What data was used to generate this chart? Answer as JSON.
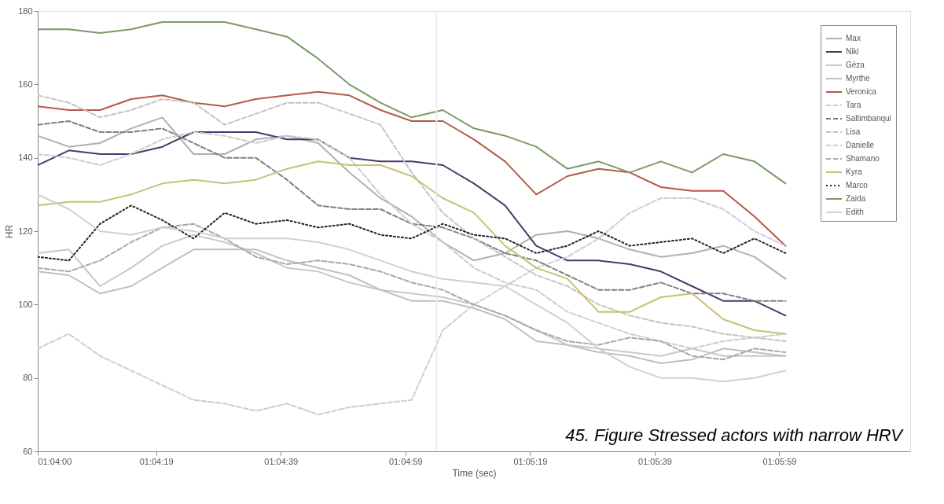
{
  "chart_data": {
    "type": "line",
    "xlabel": "Time (sec)",
    "ylabel": "HR",
    "legend": "top right",
    "grid": false,
    "xlim": [
      1.066667,
      1.105556
    ],
    "ylim": [
      60,
      180
    ],
    "xticks": [
      {
        "value": 1.066667,
        "label": "01:04:00"
      },
      {
        "value": 1.071944,
        "label": "01:04:19"
      },
      {
        "value": 1.0775,
        "label": "01:04:39"
      },
      {
        "value": 1.083056,
        "label": "01:04:59"
      },
      {
        "value": 1.088611,
        "label": "01:05:19"
      },
      {
        "value": 1.094167,
        "label": "01:05:39"
      },
      {
        "value": 1.099722,
        "label": "01:05:59"
      }
    ],
    "yticks": [
      60,
      80,
      100,
      120,
      140,
      160,
      180
    ],
    "x": [
      1.066667,
      1.068056,
      1.069444,
      1.070833,
      1.072222,
      1.073611,
      1.075,
      1.076389,
      1.077778,
      1.079167,
      1.080556,
      1.081944,
      1.083333,
      1.084722,
      1.086111,
      1.0875,
      1.088889,
      1.090278,
      1.091667,
      1.093056,
      1.094444,
      1.095833,
      1.097222,
      1.098611,
      1.1
    ],
    "ref_lines": [
      {
        "axis": "x",
        "value": 1.084444,
        "color": "#ececec"
      }
    ],
    "annotations": [
      "45. Figure Stressed actors with narrow HRV"
    ],
    "series": [
      {
        "name": "Max",
        "color": "#b0b0b0",
        "line_style": "solid",
        "values": [
          146,
          143,
          144,
          148,
          151,
          141,
          141,
          145,
          146,
          144,
          136,
          129,
          124,
          117,
          112,
          114,
          119,
          120,
          118,
          115,
          113,
          114,
          116,
          113,
          107
        ]
      },
      {
        "name": "Niki",
        "color": "#4a3a6a",
        "line_style": "solid",
        "values": [
          138,
          142,
          141,
          141,
          143,
          147,
          147,
          147,
          145,
          145,
          140,
          139,
          139,
          138,
          133,
          127,
          116,
          112,
          112,
          111,
          109,
          105,
          101,
          101,
          97
        ]
      },
      {
        "name": "Géza",
        "color": "#c8c8c8",
        "line_style": "solid",
        "values": [
          114,
          115,
          105,
          110,
          116,
          119,
          117,
          114,
          110,
          109,
          106,
          104,
          103,
          102,
          100,
          97,
          93,
          89,
          88,
          87,
          86,
          88,
          86,
          86,
          86
        ]
      },
      {
        "name": "Myrthe",
        "color": "#c0c0c0",
        "line_style": "solid",
        "values": [
          109,
          108,
          103,
          105,
          110,
          115,
          115,
          115,
          112,
          110,
          108,
          104,
          101,
          101,
          99,
          96,
          90,
          89,
          87,
          86,
          84,
          85,
          88,
          87,
          86
        ]
      },
      {
        "name": "Veronica",
        "color": "#b5594a",
        "line_style": "solid",
        "values": [
          154,
          153,
          153,
          156,
          157,
          155,
          154,
          156,
          157,
          158,
          157,
          153,
          150,
          150,
          145,
          139,
          130,
          135,
          137,
          136,
          132,
          131,
          131,
          124,
          116
        ]
      },
      {
        "name": "Tara",
        "color": "#c8cde0",
        "line_style": "dashed",
        "values": [
          88,
          92,
          86,
          82,
          78,
          74,
          73,
          71,
          73,
          70,
          72,
          73,
          74,
          93,
          100,
          105,
          110,
          113,
          118,
          125,
          129,
          129,
          126,
          120,
          116
        ]
      },
      {
        "name": "Saltimbanqui",
        "color": "#808080",
        "line_style": "dashed",
        "values": [
          149,
          150,
          147,
          147,
          148,
          144,
          140,
          140,
          134,
          127,
          126,
          126,
          122,
          121,
          118,
          114,
          112,
          108,
          104,
          104,
          106,
          103,
          103,
          101,
          101
        ]
      },
      {
        "name": "Lisa",
        "color": "#c4c4c4",
        "line_style": "dashed",
        "values": [
          157,
          155,
          151,
          153,
          156,
          155,
          149,
          152,
          155,
          155,
          152,
          149,
          136,
          125,
          118,
          113,
          108,
          105,
          100,
          97,
          95,
          94,
          92,
          91,
          90
        ]
      },
      {
        "name": "Danielle",
        "color": "#cccccc",
        "line_style": "dashed",
        "values": [
          141,
          140,
          138,
          141,
          145,
          147,
          146,
          144,
          146,
          145,
          140,
          130,
          122,
          117,
          110,
          106,
          104,
          98,
          95,
          92,
          90,
          88,
          90,
          91,
          92
        ]
      },
      {
        "name": "Shamano",
        "color": "#a8a8a8",
        "line_style": "dashed",
        "values": [
          110,
          109,
          112,
          117,
          121,
          122,
          118,
          113,
          111,
          112,
          111,
          109,
          106,
          104,
          100,
          97,
          93,
          90,
          89,
          91,
          90,
          86,
          85,
          88,
          87
        ]
      },
      {
        "name": "Kyra",
        "color": "#c9c072",
        "line_style": "solid",
        "values": [
          127,
          128,
          128,
          130,
          133,
          134,
          133,
          134,
          137,
          139,
          138,
          138,
          135,
          129,
          125,
          116,
          110,
          107,
          98,
          98,
          102,
          103,
          96,
          93,
          92
        ]
      },
      {
        "name": "Marco",
        "color": "#222222",
        "line_style": "dotted",
        "values": [
          113,
          112,
          122,
          127,
          123,
          118,
          125,
          122,
          123,
          121,
          122,
          119,
          118,
          122,
          119,
          118,
          114,
          116,
          120,
          116,
          117,
          118,
          114,
          118,
          114
        ]
      },
      {
        "name": "Zaida",
        "color": "#7a9a68",
        "line_style": "solid",
        "values": [
          175,
          175,
          174,
          175,
          177,
          177,
          177,
          175,
          173,
          167,
          160,
          155,
          151,
          153,
          148,
          146,
          143,
          137,
          139,
          136,
          139,
          136,
          141,
          139,
          133
        ]
      },
      {
        "name": "Edith",
        "color": "#d0d0d0",
        "line_style": "solid",
        "values": [
          130,
          126,
          120,
          119,
          121,
          120,
          118,
          118,
          118,
          117,
          115,
          112,
          109,
          107,
          106,
          105,
          100,
          95,
          88,
          83,
          80,
          80,
          79,
          80,
          82
        ]
      }
    ]
  }
}
